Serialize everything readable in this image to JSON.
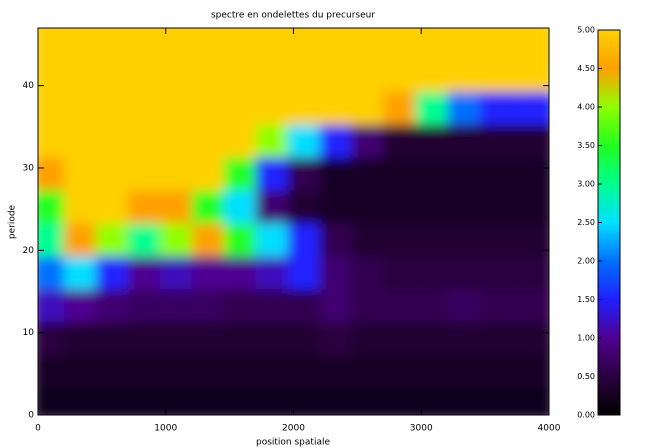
{
  "chart_data": {
    "type": "heatmap",
    "title": "spectre en ondelettes du precurseur",
    "xlabel": "position spatiale",
    "ylabel": "periode",
    "xlim": [
      0,
      4000
    ],
    "ylim": [
      0,
      47
    ],
    "xticks": [
      0,
      1000,
      2000,
      3000,
      4000
    ],
    "yticks": [
      0,
      10,
      20,
      30,
      40
    ],
    "x": [
      125,
      375,
      625,
      875,
      1125,
      1375,
      1625,
      1875,
      2125,
      2375,
      2625,
      2875,
      3125,
      3375,
      3625,
      3875
    ],
    "y": [
      2,
      6,
      10,
      14,
      18,
      22,
      26,
      30,
      34,
      38,
      42,
      46
    ],
    "z": [
      [
        0.2,
        0.2,
        0.2,
        0.2,
        0.2,
        0.2,
        0.2,
        0.2,
        0.2,
        0.2,
        0.2,
        0.2,
        0.2,
        0.2,
        0.2,
        0.2
      ],
      [
        0.3,
        0.3,
        0.3,
        0.3,
        0.3,
        0.3,
        0.3,
        0.3,
        0.3,
        0.3,
        0.3,
        0.3,
        0.3,
        0.3,
        0.3,
        0.3
      ],
      [
        0.5,
        0.4,
        0.4,
        0.4,
        0.4,
        0.4,
        0.4,
        0.4,
        0.4,
        0.5,
        0.4,
        0.4,
        0.4,
        0.4,
        0.4,
        0.4
      ],
      [
        1.2,
        1,
        0.8,
        0.7,
        0.7,
        0.7,
        0.6,
        0.6,
        0.6,
        0.8,
        0.6,
        0.6,
        0.6,
        0.7,
        0.6,
        0.6
      ],
      [
        2,
        2.5,
        1.5,
        1,
        1.2,
        1,
        1,
        1.2,
        1.5,
        0.8,
        0.6,
        0.5,
        0.5,
        0.5,
        0.5,
        0.5
      ],
      [
        3,
        4.5,
        4,
        3,
        4,
        4.5,
        3.5,
        2.5,
        1.5,
        0.6,
        0.4,
        0.4,
        0.4,
        0.4,
        0.4,
        0.4
      ],
      [
        3.5,
        5,
        5,
        4.5,
        4.5,
        3.5,
        2.5,
        0.8,
        0.4,
        0.3,
        0.3,
        0.3,
        0.3,
        0.3,
        0.3,
        0.3
      ],
      [
        4.5,
        5,
        5,
        5,
        5,
        5,
        3.5,
        1.5,
        0.6,
        0.3,
        0.3,
        0.3,
        0.3,
        0.3,
        0.3,
        0.3
      ],
      [
        5,
        5,
        5,
        5,
        5,
        5,
        5,
        4,
        2.5,
        1.5,
        0.8,
        0.4,
        0.4,
        0.4,
        0.4,
        0.4
      ],
      [
        5,
        5,
        5,
        5,
        5,
        5,
        5,
        5,
        5,
        5,
        5,
        4.5,
        3,
        2,
        1.5,
        1.5
      ],
      [
        5,
        5,
        5,
        5,
        5,
        5,
        5,
        5,
        5,
        5,
        5,
        5,
        5,
        5,
        5,
        5
      ],
      [
        5,
        5,
        5,
        5,
        5,
        5,
        5,
        5,
        5,
        5,
        5,
        5,
        5,
        5,
        5,
        5
      ]
    ],
    "clim": [
      0,
      5
    ],
    "colormap": [
      "#000000",
      "#2a0040",
      "#500090",
      "#2020ff",
      "#0070ff",
      "#00e0ff",
      "#00ff90",
      "#20ff20",
      "#90ff00",
      "#ffa000",
      "#ffd000"
    ],
    "cticks": [
      {
        "value": 0,
        "label": "0.00"
      },
      {
        "value": 0.5,
        "label": "0.50"
      },
      {
        "value": 1,
        "label": "1.00"
      },
      {
        "value": 1.5,
        "label": "1.50"
      },
      {
        "value": 2,
        "label": "2.00"
      },
      {
        "value": 2.5,
        "label": "2.50"
      },
      {
        "value": 3,
        "label": "3.00"
      },
      {
        "value": 3.5,
        "label": "3.50"
      },
      {
        "value": 4,
        "label": "4.00"
      },
      {
        "value": 4.5,
        "label": "4.50"
      },
      {
        "value": 5,
        "label": "5.00"
      }
    ]
  }
}
